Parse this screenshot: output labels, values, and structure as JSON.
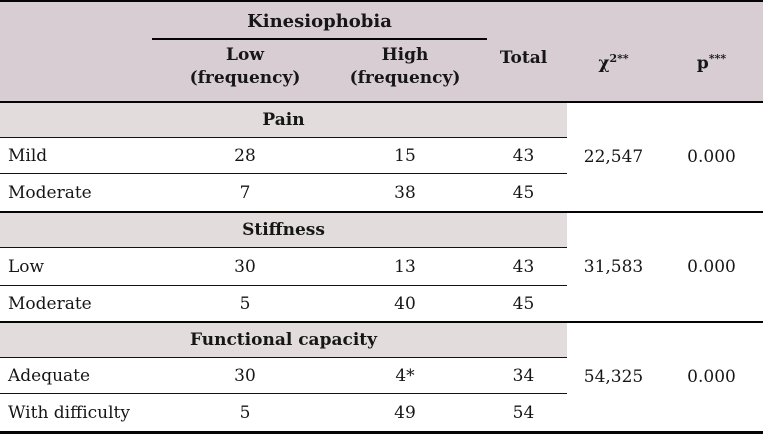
{
  "header": {
    "group_label": "Kinesiophobia",
    "col_low": {
      "line1": "Low",
      "line2": "(frequency)"
    },
    "col_high": {
      "line1": "High",
      "line2": "(frequency)"
    },
    "col_total": "Total",
    "col_chi": {
      "base": "χ",
      "sup": "2**"
    },
    "col_p": {
      "base": "p",
      "sup": "***"
    }
  },
  "sections": [
    {
      "title": "Pain",
      "rows": [
        {
          "label": "Mild",
          "low": "28",
          "high": "15",
          "total": "43"
        },
        {
          "label": "Moderate",
          "low": "7",
          "high": "38",
          "total": "45"
        }
      ],
      "chi": "22,547",
      "p": "0.000"
    },
    {
      "title": "Stiffness",
      "rows": [
        {
          "label": "Low",
          "low": "30",
          "high": "13",
          "total": "43"
        },
        {
          "label": "Moderate",
          "low": "5",
          "high": "40",
          "total": "45"
        }
      ],
      "chi": "31,583",
      "p": "0.000"
    },
    {
      "title": "Functional capacity",
      "rows": [
        {
          "label": "Adequate",
          "low": "30",
          "high": "4*",
          "total": "34"
        },
        {
          "label": "With difficulty",
          "low": "5",
          "high": "49",
          "total": "54"
        }
      ],
      "chi": "54,325",
      "p": "0.000"
    }
  ],
  "colors": {
    "header_band_color": "#d8cdd3",
    "section_band_color": "#e2dcdd",
    "line_color": "#050505",
    "text_color": "#161616"
  }
}
